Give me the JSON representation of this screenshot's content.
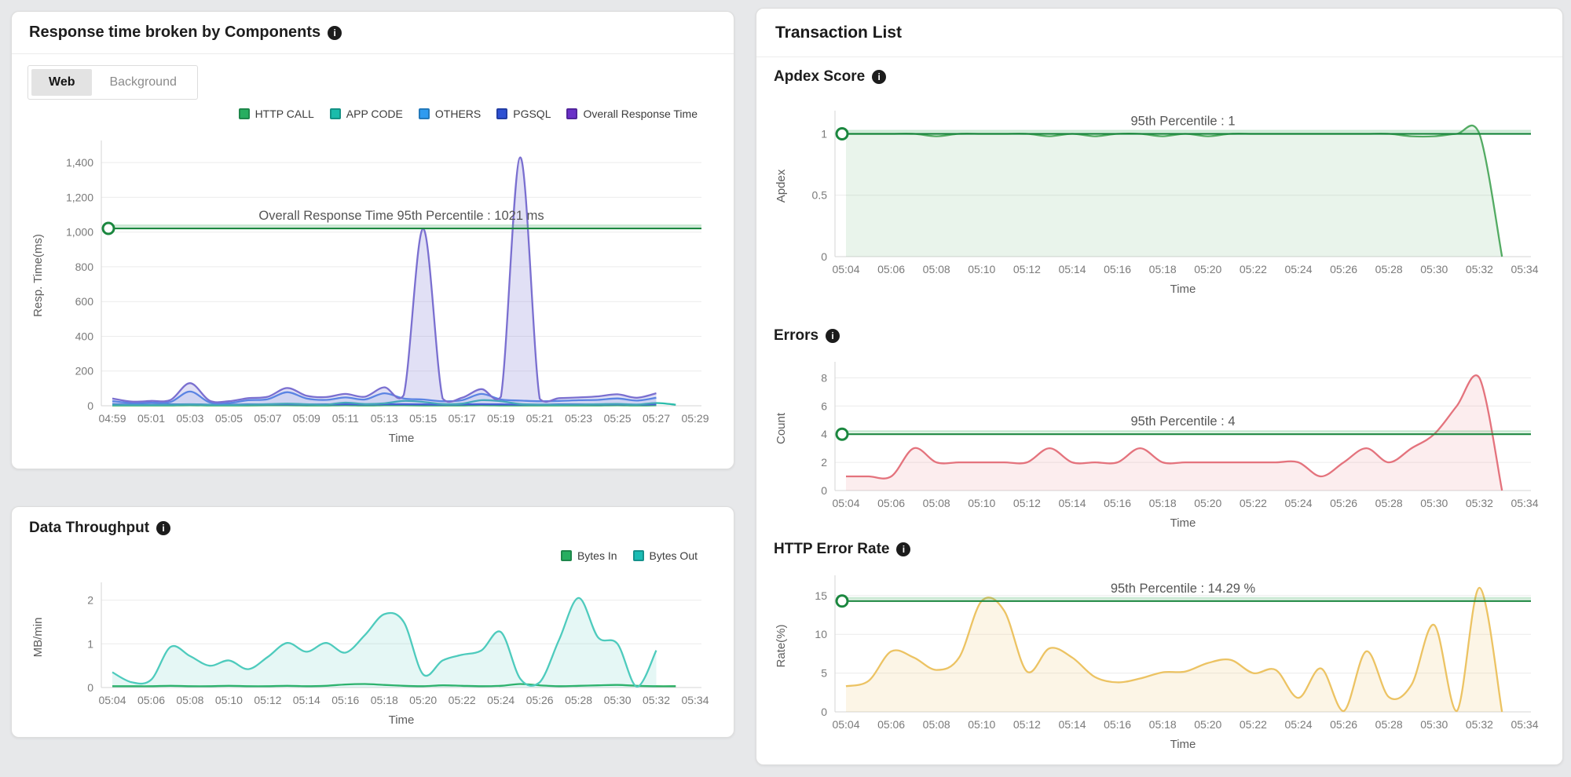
{
  "icons": {
    "info": "i"
  },
  "response_panel": {
    "title": "Response time broken by Components",
    "tabs": [
      {
        "label": "Web",
        "active": true
      },
      {
        "label": "Background",
        "active": false
      }
    ],
    "legend": [
      {
        "label": "HTTP CALL",
        "color": "#27ae60"
      },
      {
        "label": "APP CODE",
        "color": "#1abcab"
      },
      {
        "label": "OTHERS",
        "color": "#2e9bf0"
      },
      {
        "label": "PGSQL",
        "color": "#2d50d3"
      },
      {
        "label": "Overall Response Time",
        "color": "#6a30c8"
      }
    ]
  },
  "throughput_panel": {
    "title": "Data Throughput",
    "legend": [
      {
        "label": "Bytes In",
        "color": "#27ae60"
      },
      {
        "label": "Bytes Out",
        "color": "#1abcb4"
      }
    ]
  },
  "transaction_panel": {
    "title": "Transaction List",
    "sections": {
      "apdex": {
        "title": "Apdex Score"
      },
      "errors": {
        "title": "Errors"
      },
      "http_error": {
        "title": "HTTP Error Rate"
      }
    }
  },
  "chart_data": [
    {
      "id": "response",
      "type": "area",
      "title": "Response time broken by Components (Web)",
      "xlabel": "Time",
      "ylabel": "Resp. Time(ms)",
      "ylim": [
        0,
        1500
      ],
      "yticks": [
        0,
        200,
        400,
        600,
        800,
        1000,
        1200,
        1400
      ],
      "grid": true,
      "legend_position": "top-right",
      "x_tick_labels": [
        "04:59",
        "05:01",
        "05:03",
        "05:05",
        "05:07",
        "05:09",
        "05:11",
        "05:13",
        "05:15",
        "05:17",
        "05:19",
        "05:21",
        "05:23",
        "05:25",
        "05:27",
        "05:29"
      ],
      "points_per_tick": 2,
      "percentile": {
        "value": 1021,
        "label": "Overall Response Time 95th Percentile : 1021 ms",
        "color": "#1b873f"
      },
      "series": [
        {
          "name": "HTTP CALL",
          "color": "#27ae60",
          "fill": null,
          "values": [
            2,
            2,
            2,
            2,
            3,
            2,
            2,
            2,
            3,
            3,
            2,
            2,
            3,
            2,
            3,
            3,
            2,
            2,
            2,
            3,
            2,
            2,
            2,
            2,
            2,
            2,
            3,
            2,
            3,
            null,
            null
          ]
        },
        {
          "name": "PGSQL",
          "color": "#2d50d3",
          "fill": null,
          "values": [
            9,
            7,
            7,
            8,
            9,
            7,
            7,
            8,
            9,
            9,
            8,
            8,
            9,
            8,
            9,
            9,
            8,
            7,
            8,
            9,
            8,
            7,
            7,
            8,
            8,
            8,
            9,
            7,
            9,
            null,
            null
          ]
        },
        {
          "name": "APP CODE",
          "color": "#2bbcab",
          "fill": null,
          "values": [
            6,
            5,
            5,
            6,
            8,
            6,
            5,
            7,
            9,
            12,
            9,
            7,
            18,
            10,
            14,
            28,
            22,
            10,
            12,
            32,
            26,
            10,
            7,
            6,
            7,
            9,
            11,
            7,
            16,
            6,
            null
          ]
        },
        {
          "name": "OTHERS",
          "color": "#4f86e8",
          "fill": "rgba(100,140,235,0.14)",
          "values": [
            26,
            16,
            18,
            22,
            82,
            20,
            16,
            32,
            38,
            78,
            42,
            34,
            48,
            36,
            72,
            42,
            36,
            26,
            32,
            68,
            36,
            30,
            26,
            28,
            32,
            34,
            42,
            30,
            46,
            null,
            null
          ]
        },
        {
          "name": "Overall Response Time",
          "color": "#7a6fd0",
          "fill": "rgba(128,126,212,0.24)",
          "values": [
            42,
            24,
            28,
            34,
            130,
            30,
            26,
            44,
            52,
            102,
            58,
            50,
            68,
            52,
            106,
            62,
            1020,
            42,
            46,
            96,
            52,
            1430,
            40,
            44,
            48,
            54,
            66,
            46,
            72,
            null,
            null
          ]
        }
      ]
    },
    {
      "id": "throughput",
      "type": "area",
      "title": "Data Throughput",
      "xlabel": "Time",
      "ylabel": "MB/min",
      "ylim": [
        0,
        2.3
      ],
      "yticks": [
        0,
        1,
        2
      ],
      "grid": true,
      "legend_position": "top-right",
      "x_tick_labels": [
        "05:04",
        "05:06",
        "05:08",
        "05:10",
        "05:12",
        "05:14",
        "05:16",
        "05:18",
        "05:20",
        "05:22",
        "05:24",
        "05:26",
        "05:28",
        "05:30",
        "05:32",
        "05:34"
      ],
      "points_per_tick": 2,
      "series": [
        {
          "name": "Bytes In",
          "color": "#27ae60",
          "fill": null,
          "values": [
            0.03,
            0.03,
            0.03,
            0.04,
            0.03,
            0.03,
            0.04,
            0.03,
            0.03,
            0.04,
            0.03,
            0.04,
            0.07,
            0.08,
            0.06,
            0.04,
            0.03,
            0.05,
            0.04,
            0.03,
            0.04,
            0.08,
            0.05,
            0.03,
            0.04,
            0.05,
            0.06,
            0.04,
            0.03,
            0.03,
            null
          ]
        },
        {
          "name": "Bytes Out",
          "color": "#4ecbbd",
          "fill": "rgba(78,203,189,0.15)",
          "values": [
            0.35,
            0.12,
            0.18,
            0.93,
            0.72,
            0.5,
            0.62,
            0.42,
            0.7,
            1.02,
            0.82,
            1.02,
            0.8,
            1.2,
            1.68,
            1.5,
            0.3,
            0.62,
            0.75,
            0.85,
            1.27,
            0.2,
            0.12,
            1.1,
            2.05,
            1.15,
            1.0,
            0.02,
            0.85,
            null,
            null
          ]
        }
      ]
    },
    {
      "id": "apdex",
      "type": "area",
      "title": "Apdex Score",
      "xlabel": "Time",
      "ylabel": "Apdex",
      "ylim": [
        0,
        1.15
      ],
      "yticks": [
        0,
        0.5,
        1
      ],
      "grid": true,
      "x_tick_labels": [
        "05:04",
        "05:06",
        "05:08",
        "05:10",
        "05:12",
        "05:14",
        "05:16",
        "05:18",
        "05:20",
        "05:22",
        "05:24",
        "05:26",
        "05:28",
        "05:30",
        "05:32",
        "05:34"
      ],
      "points_per_tick": 2,
      "percentile": {
        "value": 1,
        "label": "95th Percentile : 1",
        "color": "#1b873f"
      },
      "series": [
        {
          "name": "Apdex",
          "color": "#53ab63",
          "fill": "rgba(83,171,99,0.13)",
          "values": [
            1,
            1,
            1,
            1,
            0.98,
            1,
            1,
            1,
            1,
            0.98,
            1,
            0.98,
            1,
            1,
            0.98,
            1,
            0.98,
            1,
            1,
            1,
            1,
            1,
            1,
            1,
            1,
            0.98,
            0.98,
            1,
            1,
            0,
            null
          ]
        }
      ]
    },
    {
      "id": "errors",
      "type": "area",
      "title": "Errors",
      "xlabel": "Time",
      "ylabel": "Count",
      "ylim": [
        0,
        8.8
      ],
      "yticks": [
        0,
        2,
        4,
        6,
        8
      ],
      "grid": true,
      "x_tick_labels": [
        "05:04",
        "05:06",
        "05:08",
        "05:10",
        "05:12",
        "05:14",
        "05:16",
        "05:18",
        "05:20",
        "05:22",
        "05:24",
        "05:26",
        "05:28",
        "05:30",
        "05:32",
        "05:34"
      ],
      "points_per_tick": 2,
      "percentile": {
        "value": 4,
        "label": "95th Percentile : 4",
        "color": "#1b873f"
      },
      "series": [
        {
          "name": "Errors",
          "color": "#e4737d",
          "fill": "rgba(228,115,125,0.13)",
          "values": [
            1,
            1,
            1,
            3,
            2,
            2,
            2,
            2,
            2,
            3,
            2,
            2,
            2,
            3,
            2,
            2,
            2,
            2,
            2,
            2,
            2,
            1,
            2,
            3,
            2,
            3,
            4,
            6,
            8,
            0,
            null
          ]
        }
      ]
    },
    {
      "id": "http_error",
      "type": "area",
      "title": "HTTP Error Rate",
      "xlabel": "Time",
      "ylabel": "Rate(%)",
      "ylim": [
        0,
        17
      ],
      "yticks": [
        0,
        5,
        10,
        15
      ],
      "grid": true,
      "x_tick_labels": [
        "05:04",
        "05:06",
        "05:08",
        "05:10",
        "05:12",
        "05:14",
        "05:16",
        "05:18",
        "05:20",
        "05:22",
        "05:24",
        "05:26",
        "05:28",
        "05:30",
        "05:32",
        "05:34"
      ],
      "points_per_tick": 2,
      "percentile": {
        "value": 14.29,
        "label": "95th Percentile : 14.29 %",
        "color": "#1b873f"
      },
      "series": [
        {
          "name": "HTTP Error Rate",
          "color": "#ecc363",
          "fill": "rgba(236,195,99,0.16)",
          "values": [
            3.3,
            4,
            7.8,
            7,
            5.4,
            7,
            14.3,
            13,
            5.2,
            8.2,
            7,
            4.5,
            3.8,
            4.3,
            5.1,
            5.2,
            6.3,
            6.7,
            5,
            5.4,
            1.8,
            5.6,
            0.1,
            7.8,
            1.9,
            3.5,
            11.2,
            0.1,
            16,
            0,
            null
          ]
        }
      ]
    }
  ]
}
